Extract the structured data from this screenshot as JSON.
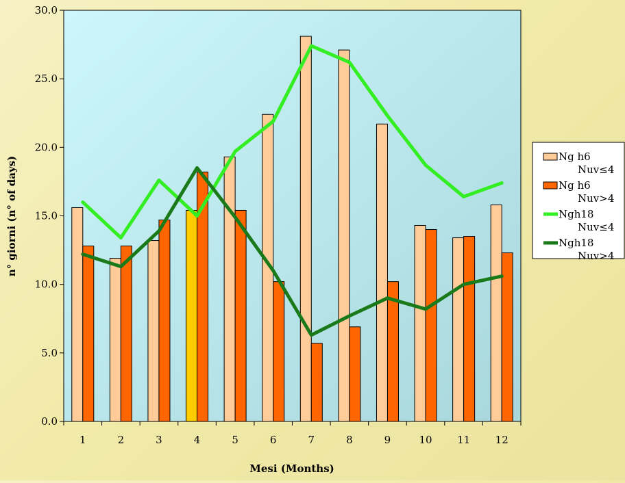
{
  "chart_data": {
    "type": "bar",
    "xlabel": "Mesi (Months)",
    "ylabel": "n° giorni  (n° of days)",
    "categories": [
      "1",
      "2",
      "3",
      "4",
      "5",
      "6",
      "7",
      "8",
      "9",
      "10",
      "11",
      "12"
    ],
    "ylim": [
      0,
      30
    ],
    "yticks": [
      "0.0",
      "5.0",
      "10.0",
      "15.0",
      "20.0",
      "25.0",
      "30.0"
    ],
    "grid": false,
    "legend_position": "right",
    "plot_background": [
      "#ccf6fb",
      "#a8d7dc"
    ],
    "highlighted_category": "4",
    "highlight_color": "#ffcc00",
    "series": [
      {
        "name": "Ng h6 Nuv≤4",
        "legend_lines": [
          "Ng h6",
          "Nuv≤4"
        ],
        "kind": "bar",
        "color": "#ffcc99",
        "values": [
          15.6,
          11.9,
          13.2,
          15.4,
          19.3,
          22.4,
          28.1,
          27.1,
          21.7,
          14.3,
          13.4,
          15.8
        ]
      },
      {
        "name": "Ng h6 Nuv>4",
        "legend_lines": [
          "Ng h6",
          "Nuv>4"
        ],
        "kind": "bar",
        "color": "#ff6600",
        "values": [
          12.8,
          12.8,
          14.7,
          18.2,
          15.4,
          10.2,
          5.7,
          6.9,
          10.2,
          14.0,
          13.5,
          12.3
        ]
      },
      {
        "name": "Ngh18 Nuv≤4",
        "legend_lines": [
          "Ngh18",
          "Nuv≤4"
        ],
        "kind": "line",
        "color": "#33ee22",
        "values": [
          16.0,
          13.4,
          17.6,
          15.0,
          19.7,
          21.9,
          27.4,
          26.2,
          22.3,
          18.7,
          16.4,
          17.4
        ]
      },
      {
        "name": "Ngh18 Nuv>4",
        "legend_lines": [
          "Ngh18",
          "Nuv>4"
        ],
        "kind": "line",
        "color": "#1a7a1a",
        "values": [
          12.2,
          11.3,
          13.9,
          18.5,
          14.9,
          11.0,
          6.3,
          7.7,
          9.0,
          8.2,
          10.0,
          10.6
        ]
      }
    ]
  }
}
